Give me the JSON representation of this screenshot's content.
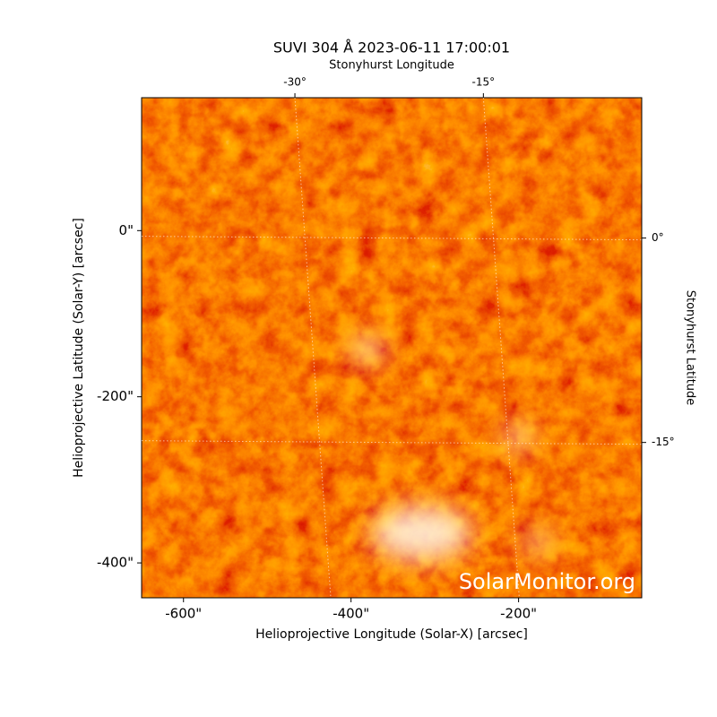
{
  "chart_data": {
    "type": "image",
    "title": "SUVI 304 Å 2023-06-11 17:00:01",
    "x_label": "Helioprojective Longitude (Solar-X) [arcsec]",
    "y_label": "Helioprojective Latitude (Solar-Y) [arcsec]",
    "x2_label": "Stonyhurst Longitude",
    "y2_label": "Stonyhurst Latitude",
    "watermark": "SolarMonitor.org",
    "xlim": [
      -650,
      -53
    ],
    "ylim": [
      -442,
      160
    ],
    "xticks": [
      {
        "value": -600,
        "label": "-600\""
      },
      {
        "value": -400,
        "label": "-400\""
      },
      {
        "value": -200,
        "label": "-200\""
      }
    ],
    "yticks": [
      {
        "value": -400,
        "label": "-400\""
      },
      {
        "value": -200,
        "label": "-200\""
      },
      {
        "value": 0,
        "label": "0\""
      }
    ],
    "x2lim": [
      -42.2,
      -2.4
    ],
    "y2lim": [
      -26.4,
      10.3
    ],
    "x2ticks": [
      {
        "value": -30,
        "label": "-30°"
      },
      {
        "value": -15,
        "label": "-15°"
      }
    ],
    "y2ticks": [
      {
        "value": -15,
        "label": "-15°"
      },
      {
        "value": 0,
        "label": "0°"
      }
    ],
    "grid": true
  }
}
